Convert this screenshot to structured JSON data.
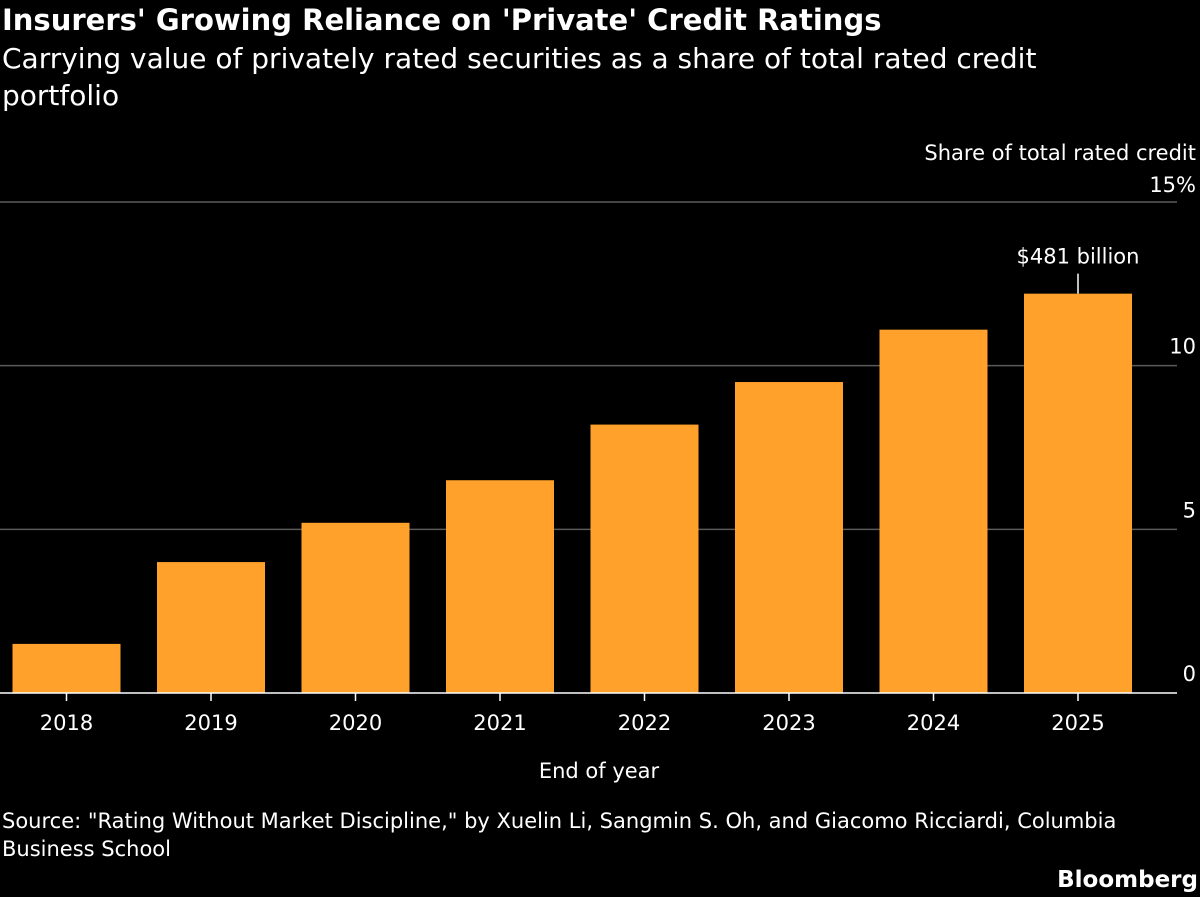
{
  "title": "Insurers' Growing Reliance on 'Private' Credit Ratings",
  "subtitle": "Carrying value of privately rated securities as a share of total rated credit portfolio",
  "source": "Source: \"Rating Without Market Discipline,\" by Xuelin Li, Sangmin S. Oh, and Giacomo Ricciardi, Columbia Business School",
  "brand": "Bloomberg",
  "colors": {
    "background": "#000000",
    "bar": "#FFA12B",
    "gridline": "#5a5a5a",
    "axis": "#ffffff",
    "text": "#ffffff"
  },
  "chart_data": {
    "type": "bar",
    "title": "Insurers' Growing Reliance on 'Private' Credit Ratings",
    "subtitle": "Carrying value of privately rated securities as a share of total rated credit portfolio",
    "xlabel": "End of year",
    "ylabel": "Share of total rated credit",
    "categories": [
      "2018",
      "2019",
      "2020",
      "2021",
      "2022",
      "2023",
      "2024",
      "2025"
    ],
    "values": [
      1.5,
      4.0,
      5.2,
      6.5,
      8.2,
      9.5,
      11.1,
      12.2
    ],
    "ylim": [
      0,
      15
    ],
    "yticks": [
      0,
      5,
      10,
      15
    ],
    "ytick_labels": [
      "0",
      "5",
      "10",
      "15%"
    ],
    "y_axis_position": "right",
    "grid": true,
    "annotations": [
      {
        "category": "2025",
        "text": "$481 billion"
      }
    ]
  }
}
